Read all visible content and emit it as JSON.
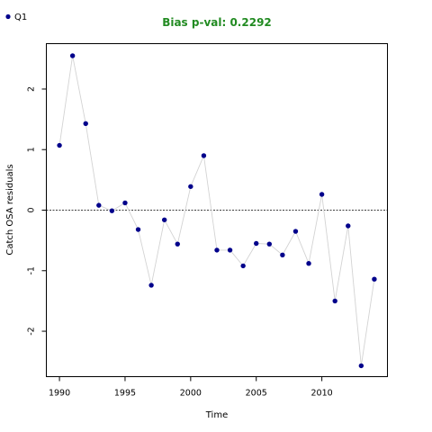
{
  "chart_data": {
    "type": "scatter",
    "title": "Bias p-val: 0.2292",
    "title_color": "#228b22",
    "xlabel": "Time",
    "ylabel": "Catch OSA residuals",
    "xlim": [
      1989,
      2015
    ],
    "ylim": [
      -2.75,
      2.75
    ],
    "x_ticks": [
      1990,
      1995,
      2000,
      2005,
      2010
    ],
    "y_ticks": [
      -2,
      -1,
      0,
      1,
      2
    ],
    "reference_line": 0,
    "grid": false,
    "legend_position": "top-left",
    "point_color": "#00008b",
    "line_color": "#d3d3d3",
    "series": [
      {
        "name": "Q1",
        "x": [
          1990,
          1991,
          1992,
          1993,
          1994,
          1995,
          1996,
          1997,
          1998,
          1999,
          2000,
          2001,
          2002,
          2003,
          2004,
          2005,
          2006,
          2007,
          2008,
          2009,
          2010,
          2011,
          2012,
          2013,
          2014
        ],
        "y": [
          1.07,
          2.55,
          1.43,
          0.08,
          -0.01,
          0.12,
          -0.32,
          -1.24,
          -0.16,
          -0.56,
          0.39,
          0.9,
          -0.66,
          -0.66,
          -0.92,
          -0.55,
          -0.56,
          -0.74,
          -0.35,
          -0.88,
          0.26,
          -1.5,
          -0.26,
          -2.57,
          -1.14
        ]
      }
    ]
  }
}
